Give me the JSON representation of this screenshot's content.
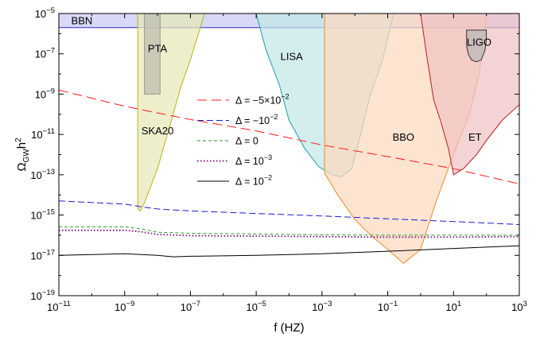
{
  "chart_data": {
    "type": "line",
    "xscale": "log",
    "yscale": "log",
    "xlim": [
      1e-11,
      1000
    ],
    "ylim": [
      1e-19,
      1e-05
    ],
    "xlabel": {
      "base": "f",
      "unit": "(HZ)"
    },
    "ylabel": {
      "base": "Ω",
      "sub": "GW",
      "tail": "h",
      "sup": "2"
    },
    "x_ticks": [
      {
        "v": 1e-11,
        "base": "10",
        "exp": "−11"
      },
      {
        "v": 1e-09,
        "base": "10",
        "exp": "−9"
      },
      {
        "v": 1e-07,
        "base": "10",
        "exp": "−7"
      },
      {
        "v": 1e-05,
        "base": "10",
        "exp": "−5"
      },
      {
        "v": 0.001,
        "base": "10",
        "exp": "−3"
      },
      {
        "v": 0.1,
        "base": "10",
        "exp": "−1"
      },
      {
        "v": 10,
        "base": "10",
        "exp": "1"
      },
      {
        "v": 1000,
        "base": "10",
        "exp": "3"
      }
    ],
    "y_ticks": [
      {
        "v": 1e-19,
        "base": "10",
        "exp": "−19"
      },
      {
        "v": 1e-17,
        "base": "10",
        "exp": "−17"
      },
      {
        "v": 1e-15,
        "base": "10",
        "exp": "−15"
      },
      {
        "v": 1e-13,
        "base": "10",
        "exp": "−13"
      },
      {
        "v": 1e-11,
        "base": "10",
        "exp": "−11"
      },
      {
        "v": 1e-09,
        "base": "10",
        "exp": "−9"
      },
      {
        "v": 1e-07,
        "base": "10",
        "exp": "−7"
      },
      {
        "v": 1e-05,
        "base": "10",
        "exp": "−5"
      }
    ],
    "regions": [
      {
        "name": "BBN",
        "fill": "#c8cbf2",
        "stroke": "#2b2bd6",
        "points": [
          [
            1e-11,
            1e-05
          ],
          [
            1000,
            1e-05
          ],
          [
            1000,
            2e-06
          ],
          [
            1e-11,
            2e-06
          ]
        ],
        "label_at": [
          5e-11,
          3e-06
        ]
      },
      {
        "name": "SKA20",
        "fill": "#e6e7b6",
        "stroke": "#b5b524",
        "points": [
          [
            2.5e-09,
            1e-05
          ],
          [
            2.5e-09,
            2e-15
          ],
          [
            3e-09,
            1.6e-15
          ],
          [
            4e-09,
            4e-15
          ],
          [
            1e-08,
            2e-13
          ],
          [
            2e-08,
            1e-11
          ],
          [
            5e-08,
            2e-09
          ],
          [
            1e-07,
            5e-08
          ],
          [
            2.7e-07,
            1e-05
          ]
        ],
        "label_at": [
          1e-08,
          1e-11
        ]
      },
      {
        "name": "PTA",
        "fill": "#bdbdb0",
        "stroke": "#9a9a8c",
        "points": [
          [
            4e-09,
            1e-05
          ],
          [
            4e-09,
            1e-09
          ],
          [
            1.2e-08,
            1e-09
          ],
          [
            1.2e-08,
            1e-05
          ]
        ],
        "label_at": [
          1e-08,
          1.2e-07
        ]
      },
      {
        "name": "LISA",
        "fill": "#c4e6e6",
        "stroke": "#1fa0a8",
        "points": [
          [
            1e-05,
            1e-05
          ],
          [
            2e-05,
            1.5e-07
          ],
          [
            5e-05,
            3e-09
          ],
          [
            0.0001,
            5e-11
          ],
          [
            0.0003,
            2e-12
          ],
          [
            0.0008,
            2.5e-13
          ],
          [
            0.002,
            1e-13
          ],
          [
            0.004,
            8e-14
          ],
          [
            0.008,
            2e-13
          ],
          [
            0.015,
            1e-11
          ],
          [
            0.03,
            1e-09
          ],
          [
            0.07,
            5e-08
          ],
          [
            0.15,
            1e-05
          ]
        ],
        "label_at": [
          0.00012,
          5e-08
        ]
      },
      {
        "name": "BBO",
        "fill": "#fcd9bf",
        "stroke": "#f28a26",
        "points": [
          [
            0.0012,
            1e-05
          ],
          [
            0.0012,
            1.2e-13
          ],
          [
            0.003,
            1e-14
          ],
          [
            0.01,
            6e-16
          ],
          [
            0.03,
            1e-16
          ],
          [
            0.1,
            2e-17
          ],
          [
            0.3,
            4e-18
          ],
          [
            1,
            2e-17
          ],
          [
            3,
            5e-15
          ],
          [
            10,
            1e-12
          ],
          [
            30,
            1e-10
          ],
          [
            60,
            1e-08
          ],
          [
            100,
            1e-05
          ]
        ],
        "label_at": [
          0.3,
          5e-12
        ]
      },
      {
        "name": "ET",
        "fill": "#eec2c2",
        "stroke": "#c01c1c",
        "points": [
          [
            1,
            1e-05
          ],
          [
            1.5,
            1e-07
          ],
          [
            2.5,
            5e-10
          ],
          [
            4,
            5e-11
          ],
          [
            7,
            2e-12
          ],
          [
            10,
            1e-13
          ],
          [
            20,
            2e-13
          ],
          [
            50,
            1e-12
          ],
          [
            100,
            5e-12
          ],
          [
            300,
            5e-11
          ],
          [
            1000,
            3e-10
          ],
          [
            1000,
            1e-05
          ]
        ],
        "label_at": [
          45,
          5e-12
        ]
      },
      {
        "name": "LIGO",
        "fill": "#b8b8b8",
        "stroke": "#333333",
        "points": [
          [
            25,
            2.5e-07
          ],
          [
            28,
            1e-07
          ],
          [
            35,
            5e-08
          ],
          [
            50,
            4e-08
          ],
          [
            70,
            5e-08
          ],
          [
            90,
            1.5e-07
          ],
          [
            100,
            5e-07
          ],
          [
            100,
            1.5e-06
          ],
          [
            25,
            1.5e-06
          ]
        ],
        "label_at": [
          60,
          2.5e-07
        ]
      }
    ],
    "series": [
      {
        "name": "Δ = −5×10",
        "sup": "−2",
        "color": "#ff1a1a",
        "dash": "12,6",
        "width": 1,
        "x": [
          1e-11,
          1e-09,
          1e-07,
          1e-05,
          0.001,
          0.1,
          10,
          1000
        ],
        "y": [
          1.6e-09,
          2.5e-10,
          5.5e-11,
          1.5e-11,
          3e-12,
          8e-13,
          2e-13,
          3.5e-14
        ]
      },
      {
        "name": "Δ = −10",
        "sup": "−2",
        "color": "#1a1ad6",
        "dash": "8,4",
        "width": 1,
        "x": [
          1e-11,
          1e-09,
          3e-09,
          1e-08,
          1e-07,
          1e-05,
          0.001,
          0.1,
          10,
          1000
        ],
        "y": [
          5e-15,
          3.5e-15,
          2.6e-15,
          2e-15,
          1.6e-15,
          1.2e-15,
          9e-16,
          6.5e-16,
          4.8e-16,
          3.4e-16
        ]
      },
      {
        "name": "Δ = 0",
        "color": "#2a9a2a",
        "dash": "4,3",
        "width": 1,
        "x": [
          1e-11,
          1e-09,
          3e-09,
          1e-08,
          1e-07,
          1e-05,
          0.001,
          0.1,
          10,
          1000
        ],
        "y": [
          2.6e-16,
          2.6e-16,
          2.1e-16,
          1.4e-16,
          1.25e-16,
          1.15e-16,
          1.05e-16,
          1e-16,
          1e-16,
          1e-16
        ]
      },
      {
        "name": "Δ = 10",
        "sup": "−3",
        "color": "#800080",
        "dash": "1.5,2.5",
        "width": 1.8,
        "x": [
          1e-11,
          1e-09,
          3e-09,
          1e-08,
          1e-07,
          1e-05,
          0.001,
          0.1,
          10,
          1000
        ],
        "y": [
          1.75e-16,
          1.75e-16,
          1.5e-16,
          1.1e-16,
          9.5e-17,
          9e-17,
          8.5e-17,
          8e-17,
          8e-17,
          8.5e-17
        ]
      },
      {
        "name": "Δ = 10",
        "sup": "−2",
        "color": "#000000",
        "dash": "",
        "width": 1,
        "x": [
          1e-11,
          1e-09,
          1e-08,
          3e-08,
          1e-07,
          1e-05,
          0.001,
          0.1,
          10,
          1000
        ],
        "y": [
          1e-17,
          1.2e-17,
          1e-17,
          8.5e-18,
          9e-18,
          1e-17,
          1.2e-17,
          1.6e-17,
          2.2e-17,
          3e-17
        ]
      }
    ],
    "legend": {
      "placement": "center"
    }
  }
}
